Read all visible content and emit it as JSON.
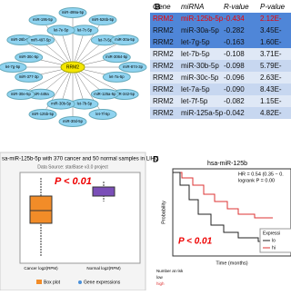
{
  "panel_a": {
    "center": "RRM2",
    "nodes": [
      "miR-499a-5p",
      "let-7c-5p",
      "miR-526b-5p",
      "let-7i-5p",
      "miR-30a-5p",
      "miR-3064-5p",
      "miR-874-3p",
      "let-7a-5p",
      "miR-342-5p",
      "miR-125a-5p",
      "let-7f-5p",
      "let-7b-5p",
      "miR-30d-5p",
      "miR-30b-5p",
      "miR-125b-5p",
      "miR-449a",
      "miR-30e-5p",
      "miR-377-3p",
      "let-7g-5p",
      "miR-30c-5p",
      "miR-26b-5p",
      "miR-497-5p",
      "miR-195-5p",
      "let-7e-5p"
    ]
  },
  "panel_b": {
    "label": "B",
    "header": [
      "Gene",
      "miRNA",
      "R-value",
      "P-value"
    ],
    "rows": [
      [
        "RRM2",
        "miR-125b-5p",
        "-0.434",
        "2.12E-"
      ],
      [
        "RRM2",
        "miR-30a-5p",
        "-0.282",
        "3.45E-"
      ],
      [
        "RRM2",
        "let-7g-5p",
        "-0.163",
        "1.60E-"
      ],
      [
        "RRM2",
        "let-7b-5p",
        "-0.108",
        "3.71E-"
      ],
      [
        "RRM2",
        "miR-30b-5p",
        "-0.098",
        "5.79E-"
      ],
      [
        "RRM2",
        "miR-30c-5p",
        "-0.096",
        "2.63E-"
      ],
      [
        "RRM2",
        "let-7a-5p",
        "-0.090",
        "8.43E-"
      ],
      [
        "RRM2",
        "let-7f-5p",
        "-0.082",
        "1.15E-"
      ],
      [
        "RRM2",
        "miR-125a-5p",
        "-0.042",
        "4.82E-"
      ]
    ]
  },
  "panel_c": {
    "title": "sa-miR-125b-5p with 370 cancer and 50 normal samples in LIHC",
    "source": "Data Source: starBase v3.0 project",
    "p_value": "P < 0.01",
    "x_labels": [
      "Cancer log2(RPM)",
      "Normal log2(RPM)"
    ],
    "legend": [
      "Box plot",
      "Gene expressions"
    ]
  },
  "panel_d": {
    "label": "D",
    "title": "hsa-miR-125b",
    "hr": "HR = 0.54 (0.35 − 0.",
    "logrank": "logrank P = 0.00",
    "p_value": "P < 0.01",
    "y_label": "Probability",
    "x_label": "Time (months)",
    "legend_title": "Expressi",
    "legend": [
      "lo",
      "hi"
    ],
    "risk_title": "Number at risk",
    "risk_groups": [
      "low",
      "high"
    ]
  }
}
